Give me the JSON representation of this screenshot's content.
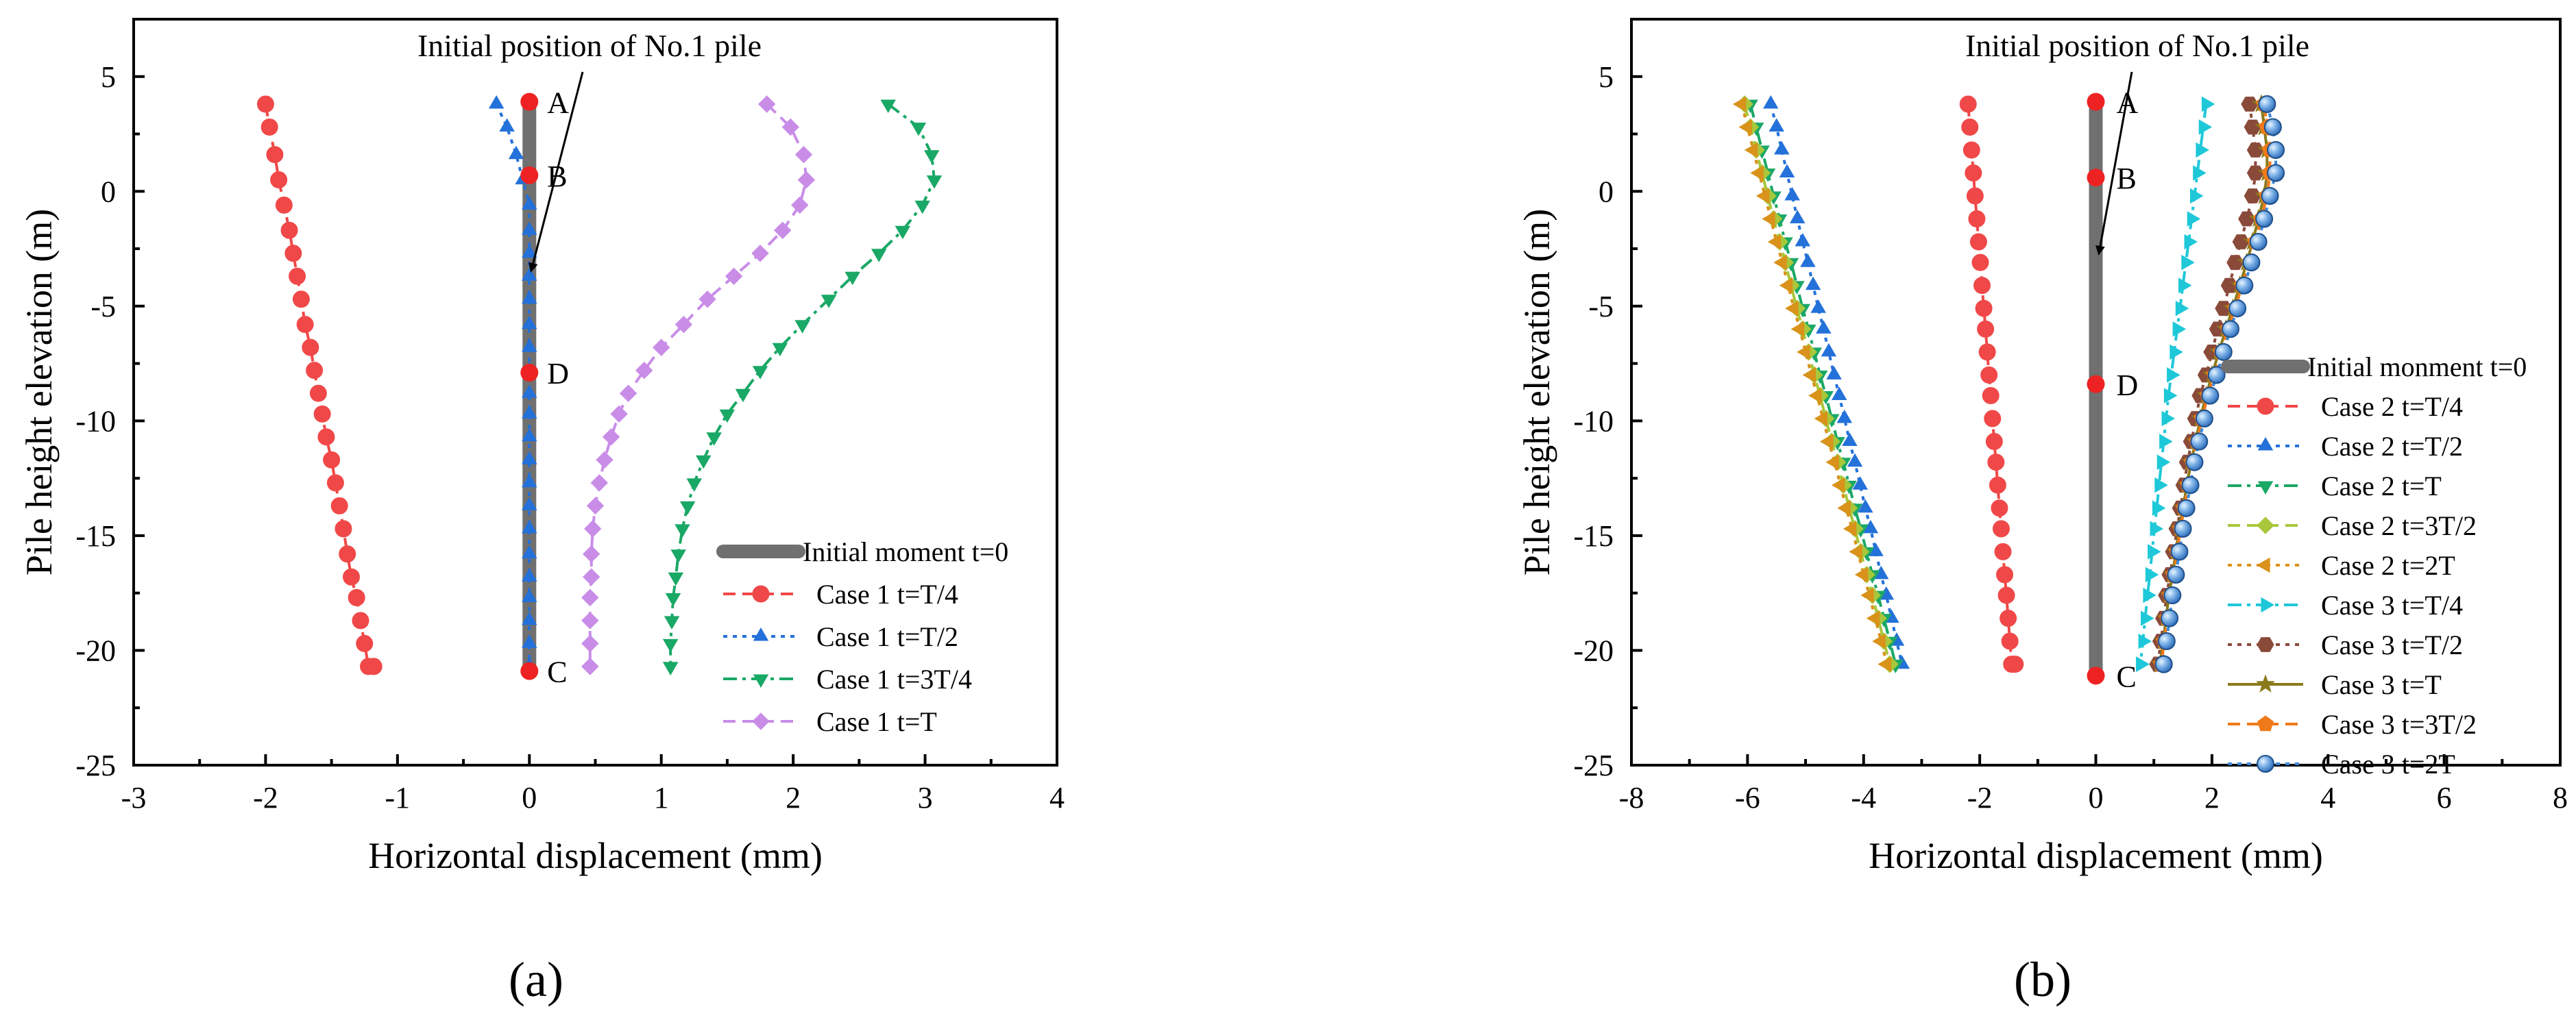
{
  "panels": [
    "(a)",
    "(b)"
  ],
  "chart_data": [
    {
      "type": "line",
      "panel": "(a)",
      "xlabel": "Horizontal displacement (mm)",
      "ylabel": "Pile height elevation (m)",
      "xlim": [
        -3,
        4
      ],
      "ylim": [
        -25,
        7.5
      ],
      "xticks": [
        "-3",
        "-2",
        "-1",
        "0",
        "1",
        "2",
        "3",
        "4"
      ],
      "yticks": [
        "5",
        "0",
        "-5",
        "-10",
        "-15",
        "-20",
        "-25"
      ],
      "annotation": "Initial position of No.1 pile",
      "point_labels": [
        {
          "label": "A",
          "x": 0,
          "y": 3.9
        },
        {
          "label": "B",
          "x": 0,
          "y": 0.7
        },
        {
          "label": "D",
          "x": 0,
          "y": -7.9
        },
        {
          "label": "C",
          "x": 0,
          "y": -20.9
        }
      ],
      "pile": {
        "name": "Initial moment t=0",
        "color": "#707070",
        "x": [
          0,
          0
        ],
        "y": [
          3.9,
          -20.9
        ]
      },
      "series": [
        {
          "name": "Case 1  t=T/4",
          "color": "#f04848",
          "marker": "circle",
          "dash": "dash",
          "x": [
            -2.0,
            -1.97,
            -1.93,
            -1.9,
            -1.86,
            -1.82,
            -1.79,
            -1.76,
            -1.73,
            -1.7,
            -1.66,
            -1.63,
            -1.6,
            -1.57,
            -1.54,
            -1.5,
            -1.47,
            -1.44,
            -1.41,
            -1.38,
            -1.35,
            -1.31,
            -1.28,
            -1.25,
            -1.22,
            -1.18
          ],
          "y": [
            3.8,
            2.8,
            1.6,
            0.5,
            -0.6,
            -1.7,
            -2.7,
            -3.7,
            -4.7,
            -5.8,
            -6.8,
            -7.8,
            -8.8,
            -9.7,
            -10.7,
            -11.7,
            -12.7,
            -13.7,
            -14.7,
            -15.8,
            -16.8,
            -17.7,
            -18.7,
            -19.7,
            -20.7,
            -20.7
          ]
        },
        {
          "name": "Case 1  t=T/2",
          "color": "#2471d9",
          "marker": "triangle-up",
          "dash": "dot",
          "x": [
            -0.25,
            -0.17,
            -0.1,
            -0.05,
            0.0,
            0.0,
            0.0,
            0.0,
            0.0,
            0.0,
            0.0,
            0.0,
            0.0,
            0.0,
            0.0,
            0.0,
            0.0,
            0.0,
            0.0,
            0.0,
            0.0,
            0.0,
            0.0,
            0.0,
            0.0,
            0.0
          ],
          "y": [
            3.8,
            2.8,
            1.6,
            0.5,
            -0.6,
            -1.7,
            -2.7,
            -3.7,
            -4.7,
            -5.8,
            -6.8,
            -7.8,
            -8.8,
            -9.7,
            -10.7,
            -11.7,
            -12.7,
            -13.7,
            -14.7,
            -15.8,
            -16.8,
            -17.7,
            -18.7,
            -19.7,
            -20.7,
            -20.7
          ]
        },
        {
          "name": "Case 1  t=3T/4",
          "color": "#1aa866",
          "marker": "triangle-down",
          "dash": "dashdot",
          "x": [
            2.72,
            2.95,
            3.05,
            3.07,
            2.98,
            2.83,
            2.65,
            2.45,
            2.27,
            2.07,
            1.9,
            1.75,
            1.62,
            1.5,
            1.4,
            1.32,
            1.25,
            1.2,
            1.16,
            1.13,
            1.11,
            1.09,
            1.08,
            1.07,
            1.07,
            1.07
          ],
          "y": [
            3.8,
            2.8,
            1.6,
            0.5,
            -0.6,
            -1.7,
            -2.7,
            -3.7,
            -4.7,
            -5.8,
            -6.8,
            -7.8,
            -8.8,
            -9.7,
            -10.7,
            -11.7,
            -12.7,
            -13.7,
            -14.7,
            -15.8,
            -16.8,
            -17.7,
            -18.7,
            -19.7,
            -20.7,
            -20.7
          ]
        },
        {
          "name": "Case 1  t=T",
          "color": "#c98de8",
          "marker": "diamond",
          "dash": "dash",
          "x": [
            1.8,
            1.98,
            2.08,
            2.1,
            2.05,
            1.92,
            1.75,
            1.55,
            1.35,
            1.17,
            1.0,
            0.87,
            0.75,
            0.68,
            0.62,
            0.57,
            0.53,
            0.5,
            0.48,
            0.47,
            0.47,
            0.46,
            0.46,
            0.46,
            0.46,
            0.46
          ],
          "y": [
            3.8,
            2.8,
            1.6,
            0.5,
            -0.6,
            -1.7,
            -2.7,
            -3.7,
            -4.7,
            -5.8,
            -6.8,
            -7.8,
            -8.8,
            -9.7,
            -10.7,
            -11.7,
            -12.7,
            -13.7,
            -14.7,
            -15.8,
            -16.8,
            -17.7,
            -18.7,
            -19.7,
            -20.7,
            -20.7
          ]
        }
      ]
    },
    {
      "type": "line",
      "panel": "(b)",
      "xlabel": "Horizontal displacement (mm)",
      "ylabel": "Pile height elevation (m)",
      "xlim": [
        -8,
        8
      ],
      "ylim": [
        -25,
        7.5
      ],
      "xticks": [
        "-8",
        "-6",
        "-4",
        "-2",
        "0",
        "2",
        "4",
        "6",
        "8"
      ],
      "yticks": [
        "5",
        "0",
        "-5",
        "-10",
        "-15",
        "-20",
        "-25"
      ],
      "annotation": "Initial position of No.1 pile",
      "point_labels": [
        {
          "label": "A",
          "x": 0,
          "y": 3.9
        },
        {
          "label": "B",
          "x": 0,
          "y": 0.6
        },
        {
          "label": "D",
          "x": 0,
          "y": -8.4
        },
        {
          "label": "C",
          "x": 0,
          "y": -21.1
        }
      ],
      "pile": {
        "name": "Initial monment t=0",
        "color": "#707070",
        "x": [
          0,
          0
        ],
        "y": [
          3.9,
          -21.1
        ]
      },
      "series": [
        {
          "name": "Case 2  t=T/4",
          "color": "#f04848",
          "marker": "circle",
          "dash": "dash",
          "x": [
            -2.2,
            -2.17,
            -2.14,
            -2.11,
            -2.08,
            -2.05,
            -2.02,
            -1.99,
            -1.96,
            -1.93,
            -1.9,
            -1.87,
            -1.84,
            -1.81,
            -1.78,
            -1.75,
            -1.72,
            -1.69,
            -1.66,
            -1.63,
            -1.6,
            -1.57,
            -1.54,
            -1.51,
            -1.48,
            -1.45,
            -1.42,
            -1.39
          ],
          "y": [
            3.8,
            2.8,
            1.8,
            0.8,
            -0.2,
            -1.2,
            -2.2,
            -3.1,
            -4.1,
            -5.1,
            -6.0,
            -7.0,
            -8.0,
            -8.9,
            -9.9,
            -10.9,
            -11.8,
            -12.8,
            -13.8,
            -14.7,
            -15.7,
            -16.7,
            -17.6,
            -18.6,
            -19.6,
            -20.6,
            -20.6,
            -20.6
          ]
        },
        {
          "name": "Case 2  t=T/2",
          "color": "#2471d9",
          "marker": "triangle-up",
          "dash": "dot",
          "x": [
            -5.6,
            -5.5,
            -5.41,
            -5.32,
            -5.23,
            -5.14,
            -5.05,
            -4.96,
            -4.87,
            -4.78,
            -4.69,
            -4.6,
            -4.51,
            -4.42,
            -4.33,
            -4.24,
            -4.15,
            -4.06,
            -3.97,
            -3.88,
            -3.79,
            -3.7,
            -3.61,
            -3.52,
            -3.43,
            -3.34,
            -3.34,
            -3.34
          ],
          "y": [
            3.8,
            2.8,
            1.8,
            0.8,
            -0.2,
            -1.2,
            -2.2,
            -3.1,
            -4.1,
            -5.1,
            -6.0,
            -7.0,
            -8.0,
            -8.9,
            -9.9,
            -10.9,
            -11.8,
            -12.8,
            -13.8,
            -14.7,
            -15.7,
            -16.7,
            -17.6,
            -18.6,
            -19.6,
            -20.6,
            -20.6,
            -20.6
          ]
        },
        {
          "name": "Case 2  t=T",
          "color": "#1aa866",
          "marker": "triangle-down",
          "dash": "dashdot",
          "x": [
            -5.95,
            -5.85,
            -5.75,
            -5.65,
            -5.55,
            -5.45,
            -5.35,
            -5.25,
            -5.15,
            -5.05,
            -4.95,
            -4.85,
            -4.75,
            -4.65,
            -4.55,
            -4.45,
            -4.35,
            -4.25,
            -4.15,
            -4.05,
            -3.95,
            -3.85,
            -3.75,
            -3.65,
            -3.55,
            -3.45,
            -3.45,
            -3.45
          ],
          "y": [
            3.8,
            2.8,
            1.8,
            0.8,
            -0.2,
            -1.2,
            -2.2,
            -3.1,
            -4.1,
            -5.1,
            -6.0,
            -7.0,
            -8.0,
            -8.9,
            -9.9,
            -10.9,
            -11.8,
            -12.8,
            -13.8,
            -14.7,
            -15.7,
            -16.7,
            -17.6,
            -18.6,
            -19.6,
            -20.6,
            -20.6,
            -20.6
          ]
        },
        {
          "name": "Case 2  t=3T/2",
          "color": "#a8c73a",
          "marker": "diamond",
          "dash": "dash",
          "x": [
            -6.05,
            -5.95,
            -5.85,
            -5.75,
            -5.65,
            -5.55,
            -5.45,
            -5.35,
            -5.25,
            -5.15,
            -5.05,
            -4.95,
            -4.85,
            -4.75,
            -4.65,
            -4.55,
            -4.45,
            -4.35,
            -4.25,
            -4.15,
            -4.05,
            -3.95,
            -3.85,
            -3.75,
            -3.65,
            -3.55,
            -3.55,
            -3.55
          ],
          "y": [
            3.8,
            2.8,
            1.8,
            0.8,
            -0.2,
            -1.2,
            -2.2,
            -3.1,
            -4.1,
            -5.1,
            -6.0,
            -7.0,
            -8.0,
            -8.9,
            -9.9,
            -10.9,
            -11.8,
            -12.8,
            -13.8,
            -14.7,
            -15.7,
            -16.7,
            -17.6,
            -18.6,
            -19.6,
            -20.6,
            -20.6,
            -20.6
          ]
        },
        {
          "name": "Case 2  t=2T",
          "color": "#d9921a",
          "marker": "triangle-left",
          "dash": "dot",
          "x": [
            -6.1,
            -6.0,
            -5.9,
            -5.8,
            -5.7,
            -5.6,
            -5.5,
            -5.4,
            -5.3,
            -5.2,
            -5.1,
            -5.0,
            -4.9,
            -4.8,
            -4.7,
            -4.6,
            -4.5,
            -4.4,
            -4.3,
            -4.2,
            -4.1,
            -4.0,
            -3.9,
            -3.8,
            -3.7,
            -3.6,
            -3.6,
            -3.6
          ],
          "y": [
            3.8,
            2.8,
            1.8,
            0.8,
            -0.2,
            -1.2,
            -2.2,
            -3.1,
            -4.1,
            -5.1,
            -6.0,
            -7.0,
            -8.0,
            -8.9,
            -9.9,
            -10.9,
            -11.8,
            -12.8,
            -13.8,
            -14.7,
            -15.7,
            -16.7,
            -17.6,
            -18.6,
            -19.6,
            -20.6,
            -20.6,
            -20.6
          ]
        },
        {
          "name": "Case 3  t=T/4",
          "color": "#1ec8d8",
          "marker": "triangle-right",
          "dash": "dashdot",
          "x": [
            1.9,
            1.85,
            1.8,
            1.75,
            1.7,
            1.65,
            1.6,
            1.55,
            1.5,
            1.45,
            1.4,
            1.35,
            1.3,
            1.25,
            1.21,
            1.17,
            1.13,
            1.09,
            1.05,
            1.01,
            0.97,
            0.93,
            0.89,
            0.85,
            0.81,
            0.77,
            0.77,
            0.77
          ],
          "y": [
            3.8,
            2.8,
            1.8,
            0.8,
            -0.2,
            -1.2,
            -2.2,
            -3.1,
            -4.1,
            -5.1,
            -6.0,
            -7.0,
            -8.0,
            -8.9,
            -9.9,
            -10.9,
            -11.8,
            -12.8,
            -13.8,
            -14.7,
            -15.7,
            -16.7,
            -17.6,
            -18.6,
            -19.6,
            -20.6,
            -20.6,
            -20.6
          ]
        },
        {
          "name": "Case 3  t=T/2",
          "color": "#8a4a3a",
          "marker": "hexagon",
          "dash": "dot",
          "x": [
            2.65,
            2.7,
            2.75,
            2.75,
            2.7,
            2.6,
            2.5,
            2.4,
            2.3,
            2.2,
            2.1,
            2.0,
            1.9,
            1.8,
            1.72,
            1.65,
            1.58,
            1.52,
            1.46,
            1.4,
            1.34,
            1.28,
            1.22,
            1.17,
            1.12,
            1.07,
            1.07,
            1.07
          ],
          "y": [
            3.8,
            2.8,
            1.8,
            0.8,
            -0.2,
            -1.2,
            -2.2,
            -3.1,
            -4.1,
            -5.1,
            -6.0,
            -7.0,
            -8.0,
            -8.9,
            -9.9,
            -10.9,
            -11.8,
            -12.8,
            -13.8,
            -14.7,
            -15.7,
            -16.7,
            -17.6,
            -18.6,
            -19.6,
            -20.6,
            -20.6,
            -20.6
          ]
        },
        {
          "name": "Case 3  t=T",
          "color": "#8a7a1a",
          "marker": "star",
          "dash": "solid",
          "x": [
            2.85,
            2.9,
            2.95,
            2.95,
            2.9,
            2.8,
            2.7,
            2.6,
            2.48,
            2.36,
            2.24,
            2.12,
            2.0,
            1.9,
            1.8,
            1.72,
            1.64,
            1.57,
            1.5,
            1.44,
            1.38,
            1.32,
            1.26,
            1.21,
            1.16,
            1.11,
            1.11,
            1.11
          ],
          "y": [
            3.8,
            2.8,
            1.8,
            0.8,
            -0.2,
            -1.2,
            -2.2,
            -3.1,
            -4.1,
            -5.1,
            -6.0,
            -7.0,
            -8.0,
            -8.9,
            -9.9,
            -10.9,
            -11.8,
            -12.8,
            -13.8,
            -14.7,
            -15.7,
            -16.7,
            -17.6,
            -18.6,
            -19.6,
            -20.6,
            -20.6,
            -20.6
          ]
        },
        {
          "name": "Case 3  t=3T/2",
          "color": "#f07a1a",
          "marker": "pentagon",
          "dash": "dash",
          "x": [
            2.9,
            2.95,
            3.0,
            3.0,
            2.95,
            2.85,
            2.75,
            2.65,
            2.52,
            2.4,
            2.28,
            2.16,
            2.04,
            1.93,
            1.83,
            1.74,
            1.66,
            1.59,
            1.52,
            1.46,
            1.4,
            1.34,
            1.28,
            1.23,
            1.18,
            1.13,
            1.13,
            1.13
          ],
          "y": [
            3.8,
            2.8,
            1.8,
            0.8,
            -0.2,
            -1.2,
            -2.2,
            -3.1,
            -4.1,
            -5.1,
            -6.0,
            -7.0,
            -8.0,
            -8.9,
            -9.9,
            -10.9,
            -11.8,
            -12.8,
            -13.8,
            -14.7,
            -15.7,
            -16.7,
            -17.6,
            -18.6,
            -19.6,
            -20.6,
            -20.6,
            -20.6
          ]
        },
        {
          "name": "Case 3  t=2T",
          "color": "#3a8ad8",
          "marker": "sphere",
          "dash": "dot",
          "x": [
            2.95,
            3.05,
            3.1,
            3.1,
            3.0,
            2.9,
            2.8,
            2.68,
            2.56,
            2.44,
            2.32,
            2.2,
            2.08,
            1.97,
            1.87,
            1.78,
            1.7,
            1.63,
            1.56,
            1.5,
            1.44,
            1.38,
            1.32,
            1.27,
            1.22,
            1.17,
            1.17,
            1.17
          ],
          "y": [
            3.8,
            2.8,
            1.8,
            0.8,
            -0.2,
            -1.2,
            -2.2,
            -3.1,
            -4.1,
            -5.1,
            -6.0,
            -7.0,
            -8.0,
            -8.9,
            -9.9,
            -10.9,
            -11.8,
            -12.8,
            -13.8,
            -14.7,
            -15.7,
            -16.7,
            -17.6,
            -18.6,
            -19.6,
            -20.6,
            -20.6,
            -20.6
          ]
        }
      ]
    }
  ]
}
